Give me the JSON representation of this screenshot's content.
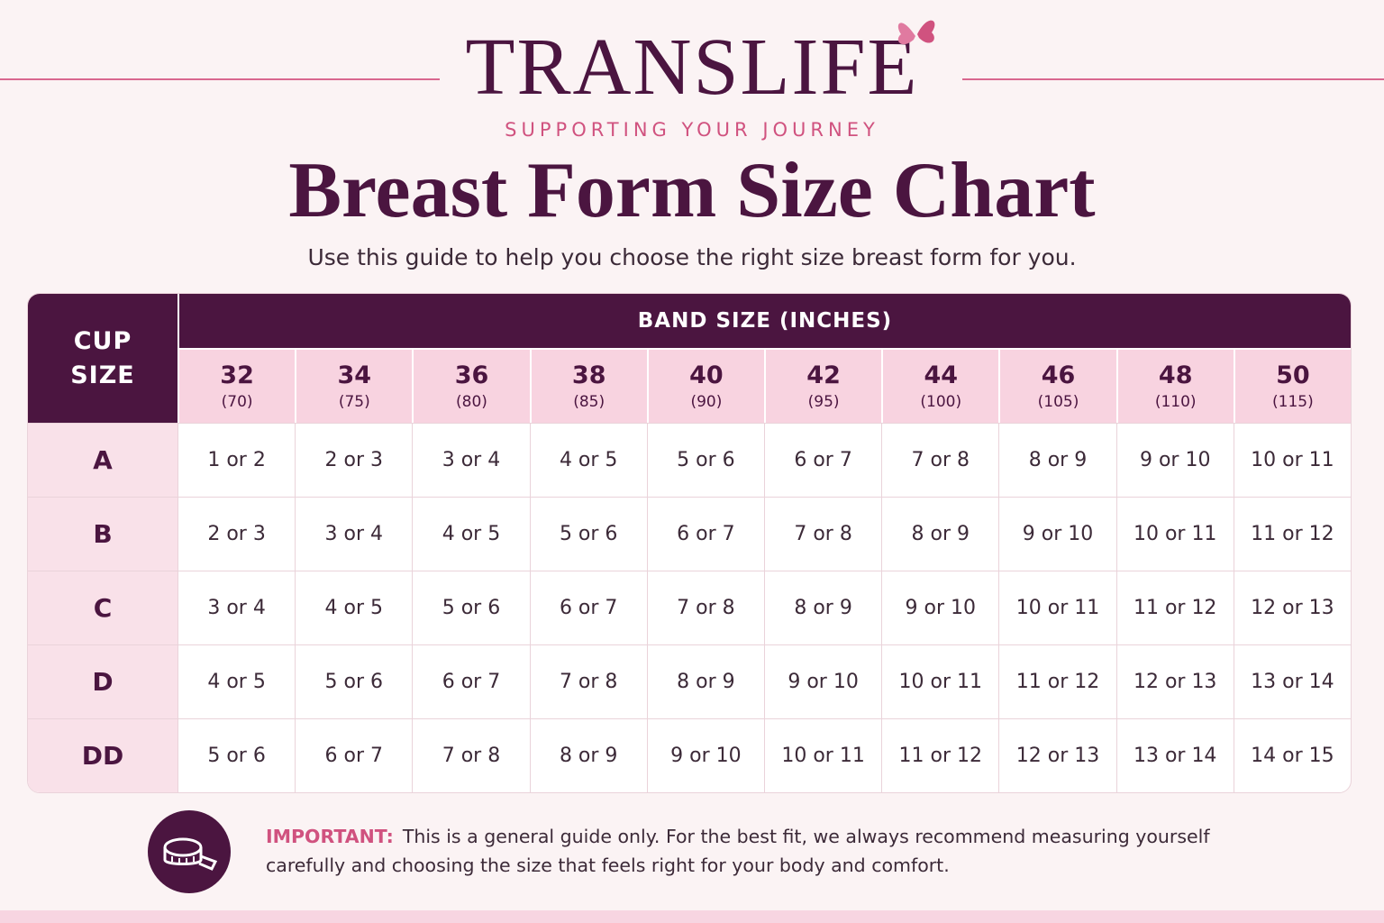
{
  "header": {
    "brand": "TRANSLIFE",
    "tagline": "SUPPORTING YOUR JOURNEY",
    "title": "Breast Form Size Chart",
    "subtitle": "Use this guide to help you choose the right size breast form for you."
  },
  "table": {
    "corner": "CUP SIZE",
    "band_heading": "BAND SIZE (INCHES)",
    "bands": [
      {
        "size": "32",
        "metric": "(70)"
      },
      {
        "size": "34",
        "metric": "(75)"
      },
      {
        "size": "36",
        "metric": "(80)"
      },
      {
        "size": "38",
        "metric": "(85)"
      },
      {
        "size": "40",
        "metric": "(90)"
      },
      {
        "size": "42",
        "metric": "(95)"
      },
      {
        "size": "44",
        "metric": "(100)"
      },
      {
        "size": "46",
        "metric": "(105)"
      },
      {
        "size": "48",
        "metric": "(110)"
      },
      {
        "size": "50",
        "metric": "(115)"
      }
    ],
    "rows": [
      {
        "cup": "A",
        "cells": [
          "1 or 2",
          "2 or 3",
          "3 or 4",
          "4 or 5",
          "5 or 6",
          "6 or 7",
          "7 or 8",
          "8 or 9",
          "9 or 10",
          "10 or 11"
        ]
      },
      {
        "cup": "B",
        "cells": [
          "2 or 3",
          "3 or 4",
          "4 or 5",
          "5 or 6",
          "6 or 7",
          "7 or 8",
          "8 or 9",
          "9 or 10",
          "10 or 11",
          "11 or 12"
        ]
      },
      {
        "cup": "C",
        "cells": [
          "3 or 4",
          "4 or 5",
          "5 or 6",
          "6 or 7",
          "7 or 8",
          "8 or 9",
          "9 or 10",
          "10 or 11",
          "11 or 12",
          "12 or 13"
        ]
      },
      {
        "cup": "D",
        "cells": [
          "4 or 5",
          "5 or 6",
          "6 or 7",
          "7 or 8",
          "8 or 9",
          "9 or 10",
          "10 or 11",
          "11 or 12",
          "12 or 13",
          "13 or 14"
        ]
      },
      {
        "cup": "DD",
        "cells": [
          "5 or 6",
          "6 or 7",
          "7 or 8",
          "8 or 9",
          "9 or 10",
          "10 or 11",
          "11 or 12",
          "12 or 13",
          "13 or 14",
          "14 or 15"
        ]
      }
    ]
  },
  "note": {
    "label": "IMPORTANT:",
    "text": "This is a general guide only. For the best fit, we always recommend measuring yourself carefully and choosing the size that feels right for your body and comfort."
  }
}
